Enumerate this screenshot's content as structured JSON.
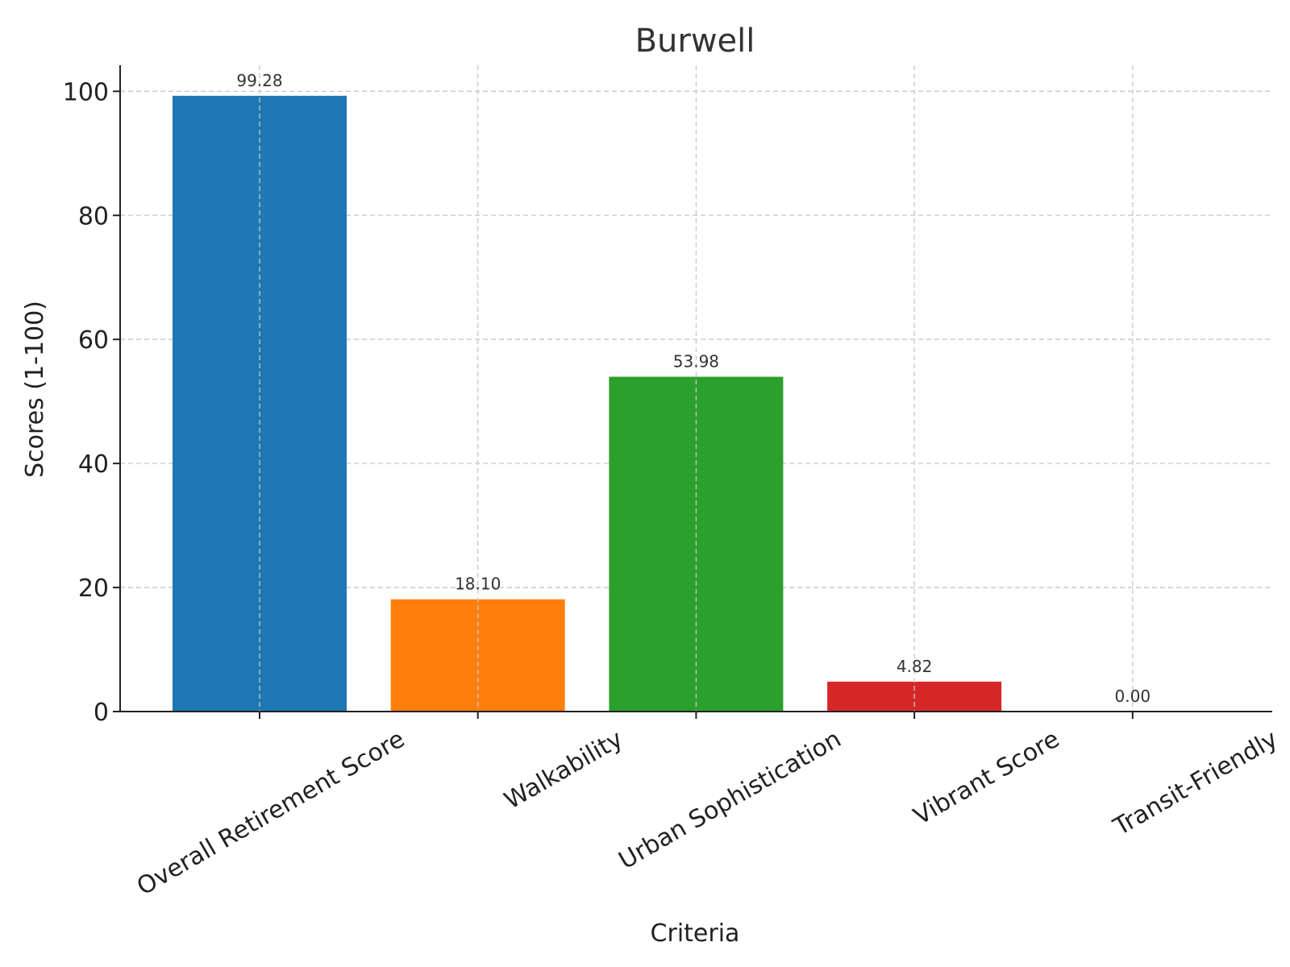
{
  "chart_data": {
    "type": "bar",
    "title": "Burwell",
    "xlabel": "Criteria",
    "ylabel": "Scores (1-100)",
    "categories": [
      "Overall Retirement Score",
      "Walkability",
      "Urban Sophistication",
      "Vibrant Score",
      "Transit-Friendly"
    ],
    "values": [
      99.28,
      18.1,
      53.98,
      4.82,
      0.0
    ],
    "value_labels": [
      "99.28",
      "18.10",
      "53.98",
      "4.82",
      "0.00"
    ],
    "colors": [
      "#1f77b4",
      "#ff7f0e",
      "#2ca02c",
      "#d62728",
      "#9467bd"
    ],
    "ylim": [
      0,
      104.2
    ],
    "yticks": [
      0,
      20,
      40,
      60,
      80,
      100
    ],
    "ytick_labels": [
      "0",
      "20",
      "40",
      "60",
      "80",
      "100"
    ],
    "grid": true,
    "legend": "none"
  }
}
